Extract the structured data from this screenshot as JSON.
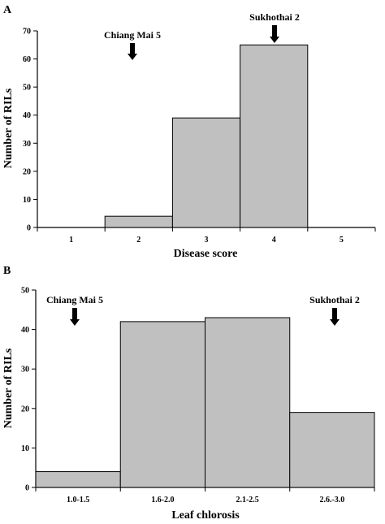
{
  "figure": {
    "colors": {
      "bar_fill": "#c0c0c0",
      "bar_stroke": "#000000",
      "axis": "#000000",
      "text": "#000000"
    }
  },
  "chart_data": [
    {
      "type": "bar",
      "panel_label": "A",
      "categories": [
        "1",
        "2",
        "3",
        "4",
        "5"
      ],
      "values": [
        0,
        4,
        39,
        65,
        0
      ],
      "xlabel": "Disease score",
      "ylabel": "Number of RILs",
      "ylim": [
        0,
        70
      ],
      "yticks": [
        0,
        10,
        20,
        30,
        40,
        50,
        60,
        70
      ],
      "grid": false,
      "legend": "none",
      "annotations": [
        {
          "text": "Chiang Mai 5",
          "arrow_at": 2.0,
          "arrow_icon": "down-arrow-icon"
        },
        {
          "text": "Sukhothai 2",
          "arrow_at": 4.0,
          "arrow_icon": "down-arrow-icon"
        }
      ]
    },
    {
      "type": "bar",
      "panel_label": "B",
      "categories": [
        "1.0-1.5",
        "1.6-2.0",
        "2.1-2.5",
        "2.6.-3.0"
      ],
      "values": [
        4,
        42,
        43,
        19
      ],
      "xlabel": "Leaf chlorosis",
      "ylabel": "Number of RILs",
      "ylim": [
        0,
        50
      ],
      "yticks": [
        0,
        10,
        20,
        30,
        40,
        50
      ],
      "grid": false,
      "legend": "none",
      "annotations": [
        {
          "text": "Chiang Mai 5",
          "arrow_at": 1.0,
          "arrow_icon": "down-arrow-icon"
        },
        {
          "text": "Sukhothai 2",
          "arrow_at": 4.0,
          "arrow_icon": "down-arrow-icon"
        }
      ]
    }
  ]
}
